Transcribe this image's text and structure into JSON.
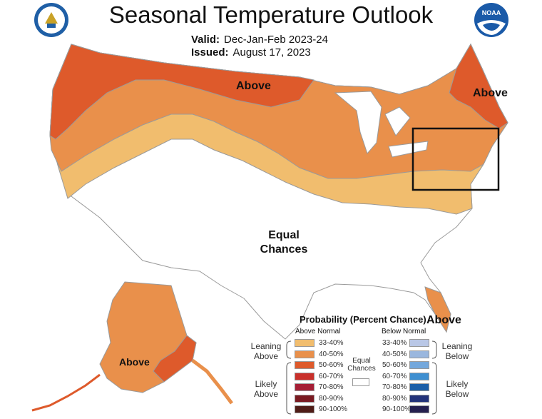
{
  "header": {
    "title": "Seasonal Temperature Outlook",
    "valid_label": "Valid:",
    "valid_value": "Dec-Jan-Feb 2023-24",
    "issued_label": "Issued:",
    "issued_value": "August 17, 2023"
  },
  "logos": {
    "left": "doc-seal-icon",
    "right_text": "NOAA"
  },
  "map_labels": {
    "above_north": "Above",
    "above_northeast": "Above",
    "above_florida": "Above",
    "above_alaska": "Above",
    "equal_line1": "Equal",
    "equal_line2": "Chances"
  },
  "colors": {
    "above_33_40": "#f1bd6e",
    "above_40_50": "#e9904b",
    "above_50_60": "#de5a2b",
    "above_60_70": "#c9302b",
    "above_70_80": "#a51e35",
    "above_80_90": "#7a1a21",
    "above_90_100": "#4f1c16",
    "below_33_40": "#b9c7e6",
    "below_40_50": "#9ab7de",
    "below_50_60": "#74a8dc",
    "below_60_70": "#3e8fd1",
    "below_70_80": "#1b5fa8",
    "below_80_90": "#23337a",
    "below_90_100": "#25204f"
  },
  "legend": {
    "title": "Probability (Percent Chance)",
    "above_header": "Above Normal",
    "below_header": "Below Normal",
    "above_rows": [
      "33-40%",
      "40-50%",
      "50-60%",
      "60-70%",
      "70-80%",
      "80-90%",
      "90-100%"
    ],
    "below_rows": [
      "33-40%",
      "40-50%",
      "50-60%",
      "60-70%",
      "70-80%",
      "80-90%",
      "90-100%"
    ],
    "leaning_above": [
      "Leaning",
      "Above"
    ],
    "likely_above": [
      "Likely",
      "Above"
    ],
    "leaning_below": [
      "Leaning",
      "Below"
    ],
    "likely_below": [
      "Likely",
      "Below"
    ],
    "equal_chances": [
      "Equal",
      "Chances"
    ]
  }
}
